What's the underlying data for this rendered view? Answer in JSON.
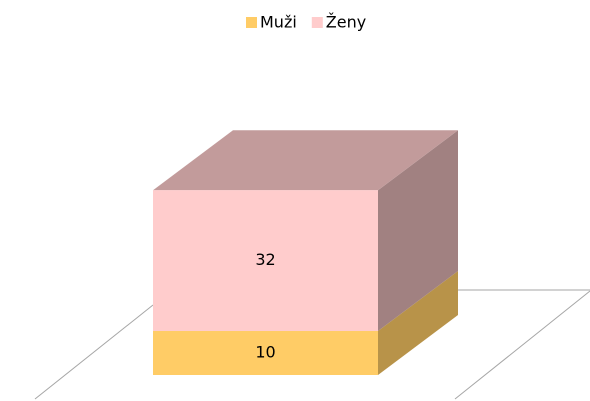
{
  "chart_data": {
    "type": "bar3d_stacked",
    "categories": [
      null
    ],
    "series": [
      {
        "name": "Muži",
        "color": "#ffcc66",
        "values": [
          10
        ]
      },
      {
        "name": "Ženy",
        "color": "#ffcccc",
        "values": [
          32
        ]
      }
    ],
    "legend": "top"
  }
}
